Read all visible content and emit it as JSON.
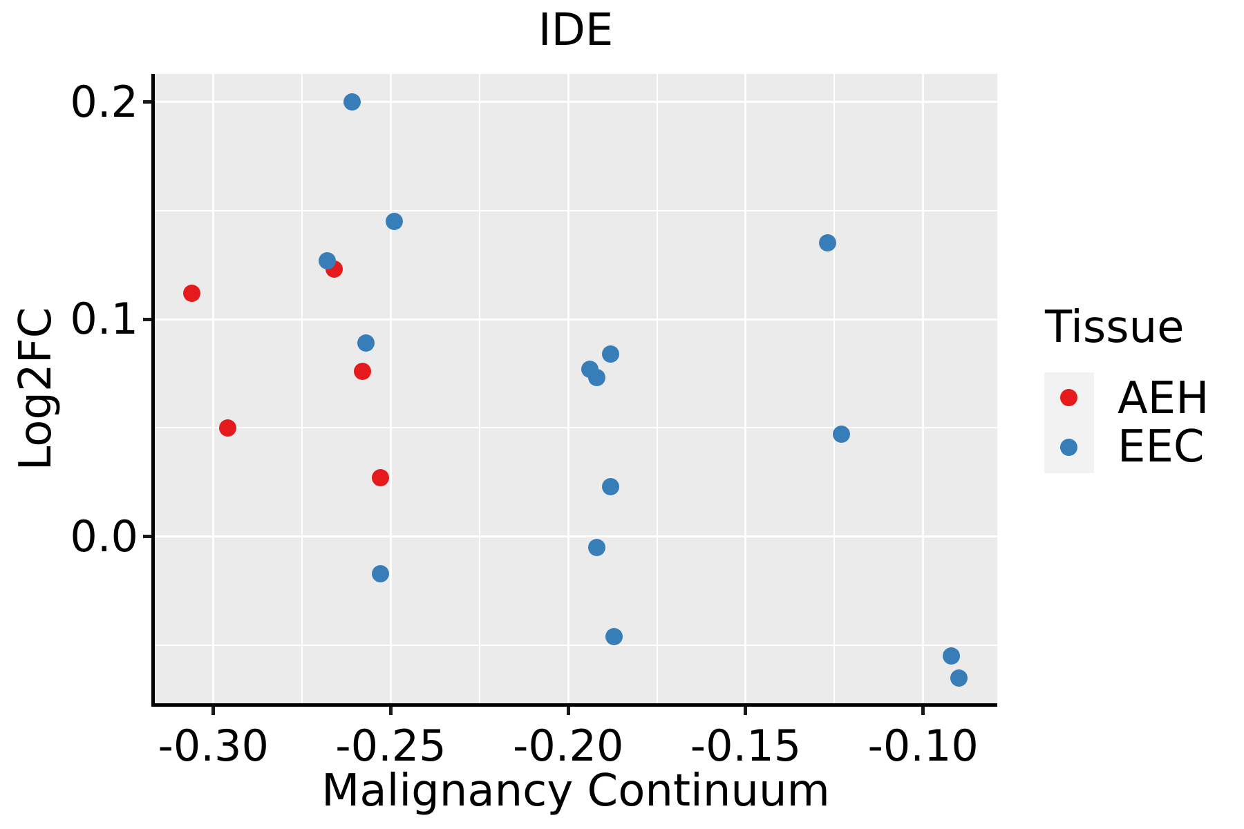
{
  "figure": {
    "title": "IDE"
  },
  "chart_data": {
    "type": "scatter",
    "title": "IDE",
    "xlabel": "Malignancy Continuum",
    "ylabel": "Log2FC",
    "xlim": [
      -0.3167,
      -0.0791
    ],
    "ylim": [
      -0.0774,
      0.2129
    ],
    "x_ticks": {
      "values": [
        -0.3,
        -0.25,
        -0.2,
        -0.15,
        -0.1
      ],
      "labels": [
        "-0.30",
        "-0.25",
        "-0.20",
        "-0.15",
        "-0.10"
      ],
      "minor": [
        -0.275,
        -0.225,
        -0.175,
        -0.125
      ]
    },
    "y_ticks": {
      "values": [
        0.2,
        0.1,
        0.0
      ],
      "labels": [
        "0.2",
        "0.1",
        "0.0"
      ],
      "minor": [
        0.15,
        0.05,
        -0.05
      ]
    },
    "grid": "on",
    "panel_background": "#EBEBEB",
    "gridline_color": "#FFFFFF",
    "legend_position": "right",
    "series": [
      {
        "name": "AEH",
        "color": "#E41A1C",
        "points": [
          [
            -0.306,
            0.112
          ],
          [
            -0.296,
            0.05
          ],
          [
            -0.266,
            0.123
          ],
          [
            -0.258,
            0.076
          ],
          [
            -0.253,
            0.027
          ]
        ]
      },
      {
        "name": "EEC",
        "color": "#377EB8",
        "points": [
          [
            -0.268,
            0.127
          ],
          [
            -0.261,
            0.2
          ],
          [
            -0.257,
            0.089
          ],
          [
            -0.253,
            -0.017
          ],
          [
            -0.249,
            0.145
          ],
          [
            -0.194,
            0.077
          ],
          [
            -0.192,
            0.073
          ],
          [
            -0.192,
            -0.005
          ],
          [
            -0.188,
            0.084
          ],
          [
            -0.188,
            0.023
          ],
          [
            -0.187,
            -0.046
          ],
          [
            -0.127,
            0.135
          ],
          [
            -0.123,
            0.047
          ],
          [
            -0.092,
            -0.055
          ],
          [
            -0.09,
            -0.065
          ]
        ]
      }
    ]
  },
  "legend": {
    "title": "Tissue",
    "entries": [
      {
        "label": "AEH",
        "color": "#E41A1C"
      },
      {
        "label": "EEC",
        "color": "#377EB8"
      }
    ]
  }
}
